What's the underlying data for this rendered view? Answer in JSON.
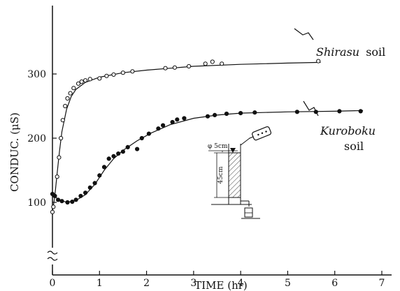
{
  "chart_data": {
    "type": "scatter",
    "xlabel": "TIME (hr)",
    "ylabel": "CONDUC. (μS)",
    "xlim": [
      0,
      7
    ],
    "ylim": [
      60,
      350
    ],
    "axis_break": "y",
    "xticks": [
      0,
      1,
      2,
      3,
      4,
      5,
      6,
      7
    ],
    "yticks": [
      100,
      200,
      300
    ],
    "grid": false,
    "series": [
      {
        "name": "Shirasu",
        "label_suffix": "soil",
        "marker": "open-circle",
        "points": [
          [
            0.0,
            85
          ],
          [
            0.02,
            93
          ],
          [
            0.05,
            110
          ],
          [
            0.1,
            140
          ],
          [
            0.14,
            170
          ],
          [
            0.18,
            200
          ],
          [
            0.22,
            228
          ],
          [
            0.27,
            250
          ],
          [
            0.32,
            262
          ],
          [
            0.38,
            270
          ],
          [
            0.45,
            278
          ],
          [
            0.55,
            285
          ],
          [
            0.62,
            288
          ],
          [
            0.7,
            290
          ],
          [
            0.8,
            292
          ],
          [
            1.0,
            293
          ],
          [
            1.15,
            297
          ],
          [
            1.3,
            299
          ],
          [
            1.5,
            302
          ],
          [
            1.7,
            304
          ],
          [
            2.4,
            309
          ],
          [
            2.6,
            310
          ],
          [
            2.9,
            312
          ],
          [
            3.25,
            316
          ],
          [
            3.4,
            319
          ],
          [
            3.6,
            316
          ],
          [
            5.65,
            320
          ]
        ],
        "curve": [
          [
            0.0,
            85
          ],
          [
            0.05,
            110
          ],
          [
            0.1,
            145
          ],
          [
            0.15,
            180
          ],
          [
            0.2,
            210
          ],
          [
            0.3,
            245
          ],
          [
            0.4,
            265
          ],
          [
            0.5,
            276
          ],
          [
            0.7,
            287
          ],
          [
            1.0,
            295
          ],
          [
            1.5,
            302
          ],
          [
            2.0,
            306
          ],
          [
            3.0,
            312
          ],
          [
            4.0,
            315
          ],
          [
            5.0,
            317
          ],
          [
            5.7,
            318
          ]
        ]
      },
      {
        "name": "Kuroboku",
        "label_suffix": "soil",
        "marker": "filled-circle",
        "points": [
          [
            0.0,
            113
          ],
          [
            0.05,
            110
          ],
          [
            0.12,
            104
          ],
          [
            0.2,
            102
          ],
          [
            0.32,
            100
          ],
          [
            0.42,
            101
          ],
          [
            0.5,
            104
          ],
          [
            0.6,
            110
          ],
          [
            0.7,
            115
          ],
          [
            0.8,
            123
          ],
          [
            0.9,
            130
          ],
          [
            1.0,
            142
          ],
          [
            1.1,
            155
          ],
          [
            1.2,
            168
          ],
          [
            1.3,
            172
          ],
          [
            1.4,
            176
          ],
          [
            1.5,
            179
          ],
          [
            1.6,
            186
          ],
          [
            1.8,
            183
          ],
          [
            1.9,
            200
          ],
          [
            2.05,
            207
          ],
          [
            2.25,
            215
          ],
          [
            2.35,
            220
          ],
          [
            2.55,
            225
          ],
          [
            2.65,
            229
          ],
          [
            2.8,
            231
          ],
          [
            3.3,
            234
          ],
          [
            3.45,
            236
          ],
          [
            3.7,
            238
          ],
          [
            4.0,
            239
          ],
          [
            4.3,
            240
          ],
          [
            5.2,
            241
          ],
          [
            5.6,
            241
          ],
          [
            6.1,
            242
          ],
          [
            6.55,
            242
          ]
        ],
        "curve": [
          [
            0.0,
            113
          ],
          [
            0.1,
            106
          ],
          [
            0.3,
            100
          ],
          [
            0.5,
            103
          ],
          [
            0.7,
            112
          ],
          [
            0.9,
            128
          ],
          [
            1.1,
            150
          ],
          [
            1.3,
            168
          ],
          [
            1.5,
            181
          ],
          [
            1.8,
            196
          ],
          [
            2.1,
            208
          ],
          [
            2.5,
            221
          ],
          [
            3.0,
            231
          ],
          [
            3.5,
            236
          ],
          [
            4.0,
            239
          ],
          [
            5.0,
            241
          ],
          [
            6.0,
            242
          ],
          [
            6.6,
            243
          ]
        ]
      }
    ],
    "inset": {
      "diameter_label": "φ 5cm",
      "height_label": "45cm"
    }
  }
}
